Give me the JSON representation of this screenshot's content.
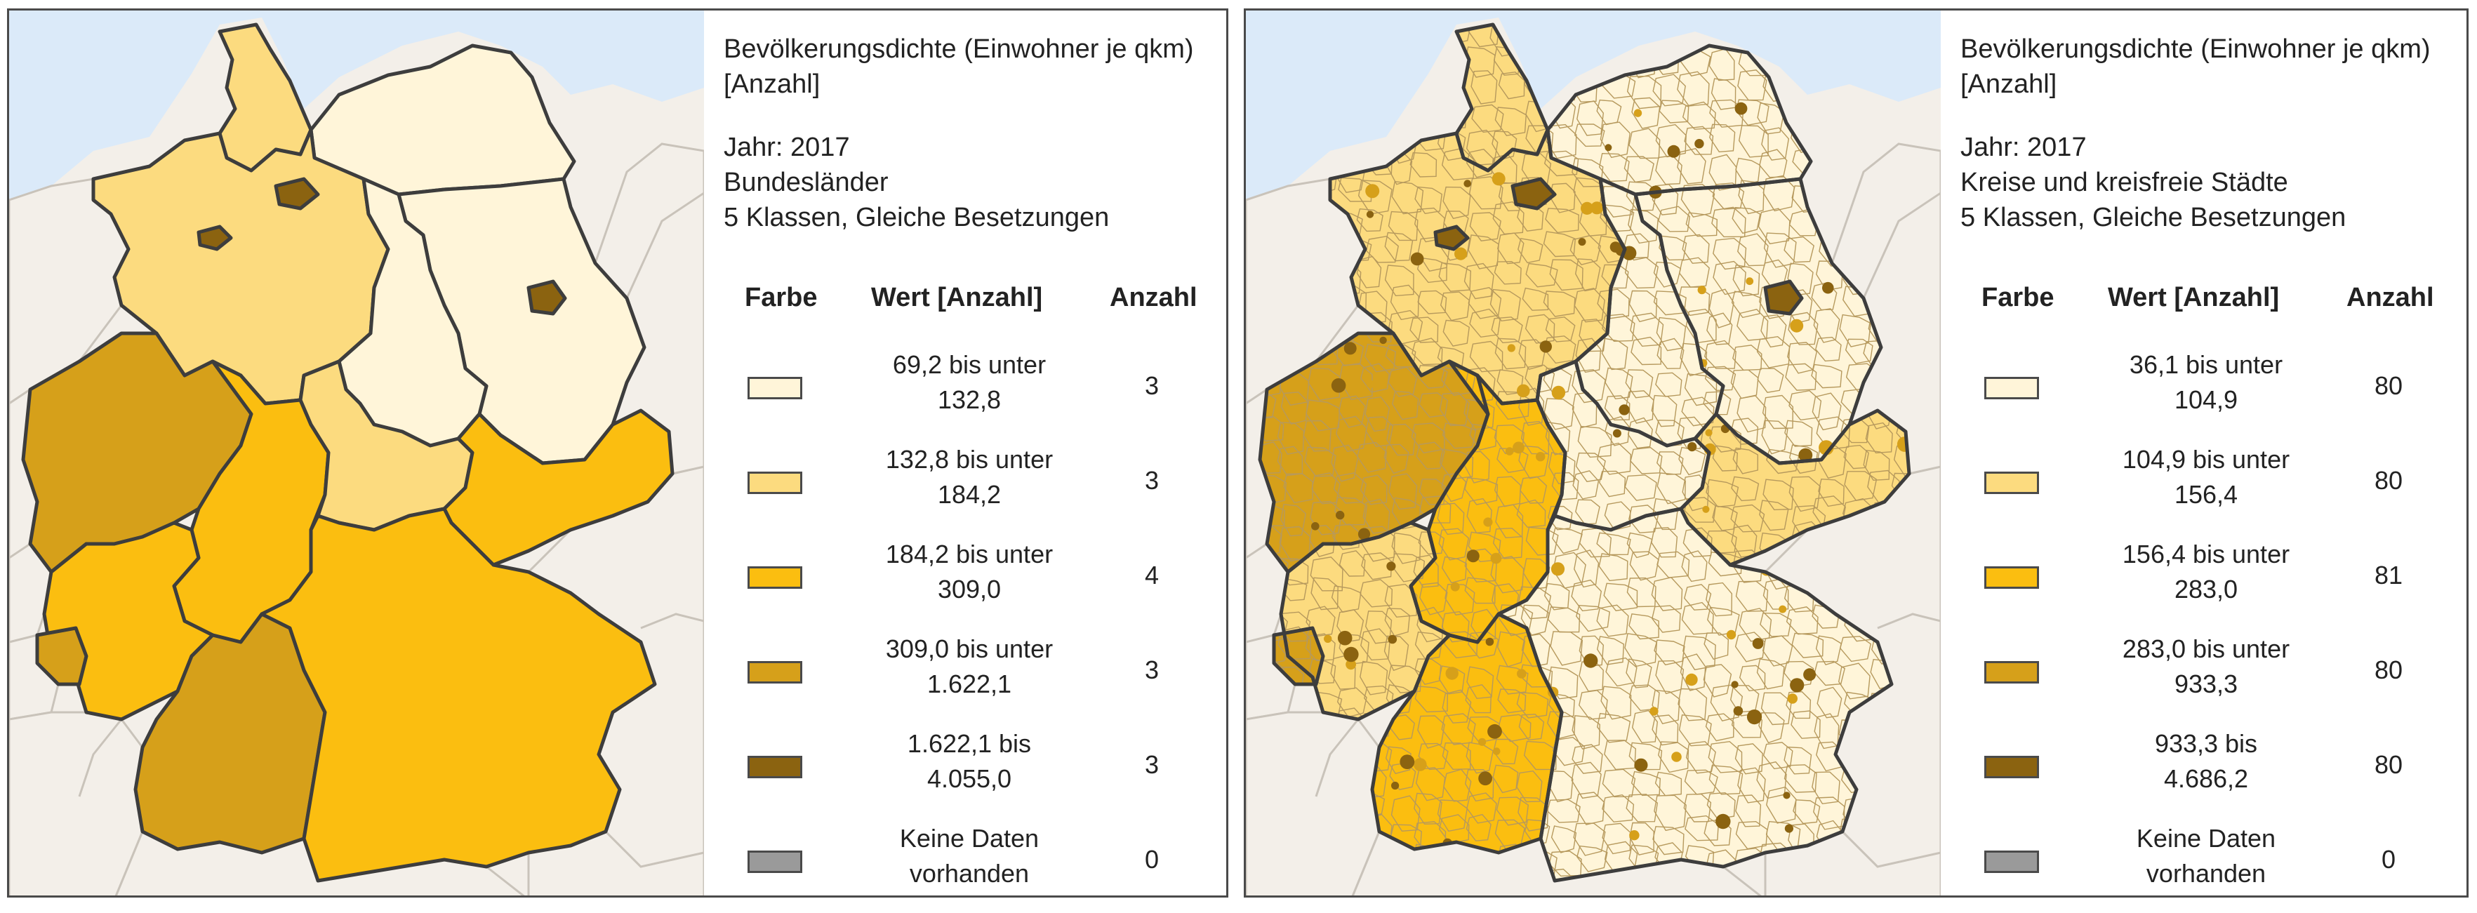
{
  "panels": [
    {
      "id": "left",
      "title": "Bevölkerungsdichte (Einwohner je qkm) [Anzahl]",
      "year": "Jahr: 2017",
      "level": "Bundesländer",
      "classes": "5 Klassen, Gleiche Besetzungen",
      "headers": {
        "color": "Farbe",
        "value": "Wert [Anzahl]",
        "count": "Anzahl"
      },
      "rows": [
        {
          "line1": "69,2 bis unter",
          "line2": "132,8",
          "count": "3",
          "color": "#fff5d9"
        },
        {
          "line1": "132,8 bis unter",
          "line2": "184,2",
          "count": "3",
          "color": "#fcdb7f"
        },
        {
          "line1": "184,2 bis unter",
          "line2": "309,0",
          "count": "4",
          "color": "#fbbe10"
        },
        {
          "line1": "309,0 bis unter",
          "line2": "1.622,1",
          "count": "3",
          "color": "#d6a01a"
        },
        {
          "line1": "1.622,1 bis",
          "line2": "4.055,0",
          "count": "3",
          "color": "#8b6310"
        },
        {
          "line1": "Keine Daten",
          "line2": "vorhanden",
          "count": "0",
          "color": "#9a9a9a"
        }
      ]
    },
    {
      "id": "right",
      "title": "Bevölkerungsdichte (Einwohner je qkm) [Anzahl]",
      "year": "Jahr: 2017",
      "level": "Kreise und kreisfreie Städte",
      "classes": "5 Klassen, Gleiche Besetzungen",
      "headers": {
        "color": "Farbe",
        "value": "Wert [Anzahl]",
        "count": "Anzahl"
      },
      "rows": [
        {
          "line1": "36,1 bis unter",
          "line2": "104,9",
          "count": "80",
          "color": "#fff5d9"
        },
        {
          "line1": "104,9 bis unter",
          "line2": "156,4",
          "count": "80",
          "color": "#fcdb7f"
        },
        {
          "line1": "156,4 bis unter",
          "line2": "283,0",
          "count": "81",
          "color": "#fbbe10"
        },
        {
          "line1": "283,0 bis unter",
          "line2": "933,3",
          "count": "80",
          "color": "#d6a01a"
        },
        {
          "line1": "933,3 bis",
          "line2": "4.686,2",
          "count": "80",
          "color": "#8b6310"
        },
        {
          "line1": "Keine Daten",
          "line2": "vorhanden",
          "count": "0",
          "color": "#9a9a9a"
        }
      ]
    }
  ],
  "map_colors": {
    "sea": "#dbeaf9",
    "neighbors": "#f3efe9",
    "neighbor_border": "#c9c3ba",
    "state_border": "#3d3d3d"
  },
  "left_map": {
    "SH": "#fcdb7f",
    "HH": "#8b6310",
    "MV": "#fff5d9",
    "HB": "#8b6310",
    "NI": "#fcdb7f",
    "BB": "#fff5d9",
    "BE": "#8b6310",
    "ST": "#fff5d9",
    "NW": "#d6a01a",
    "HE": "#fbbe10",
    "TH": "#fcdb7f",
    "SN": "#fbbe10",
    "RP": "#fbbe10",
    "SL": "#d6a01a",
    "BW": "#d6a01a",
    "BY": "#fbbe10"
  },
  "right_map": {
    "SH": "#fcdb7f",
    "HH": "#8b6310",
    "MV": "#fff5d9",
    "HB": "#8b6310",
    "NI": "#fcdb7f",
    "BB": "#fff5d9",
    "BE": "#8b6310",
    "ST": "#fff5d9",
    "NW": "#d6a01a",
    "HE": "#fbbe10",
    "TH": "#fff5d9",
    "SN": "#fcdb7f",
    "RP": "#fcdb7f",
    "SL": "#d6a01a",
    "BW": "#fbbe10",
    "BY": "#fff5d9"
  }
}
